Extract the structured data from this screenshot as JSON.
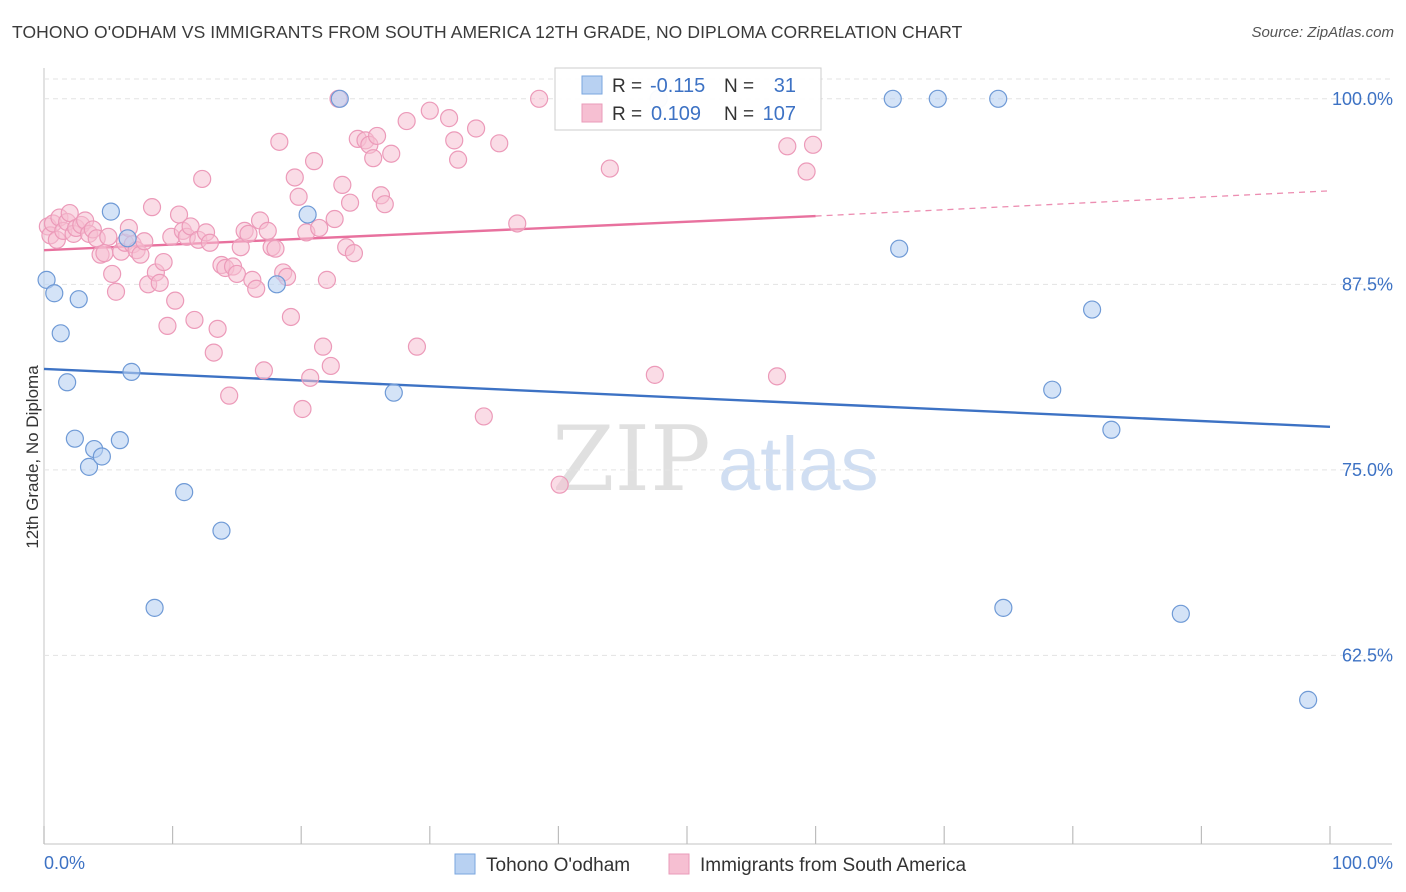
{
  "title": "TOHONO O'ODHAM VS IMMIGRANTS FROM SOUTH AMERICA 12TH GRADE, NO DIPLOMA CORRELATION CHART",
  "source": "Source: ZipAtlas.com",
  "colors": {
    "blue": "#3d72c4",
    "blue_fill": "#b8d1f2",
    "pink": "#e8719e",
    "pink_fill": "#f6bfd2"
  },
  "legend_box": {
    "row1": {
      "r_label": "R =",
      "r_value": "-0.115",
      "n_label": "N =",
      "n_value": "31"
    },
    "row2": {
      "r_label": "R =",
      "r_value": "0.109",
      "n_label": "N =",
      "n_value": "107"
    }
  },
  "bottom_legend": {
    "s1": "Tohono O'odham",
    "s2": "Immigrants from South America"
  },
  "watermark": {
    "zip": "ZIP",
    "atlas": "atlas"
  },
  "chart_data": {
    "type": "scatter",
    "title": "TOHONO O'ODHAM VS IMMIGRANTS FROM SOUTH AMERICA 12TH GRADE, NO DIPLOMA CORRELATION CHART",
    "xlabel": "",
    "ylabel": "12th Grade, No Diploma",
    "xlim": [
      0,
      100
    ],
    "ylim": [
      50.8,
      101.2
    ],
    "x_tick_labels": [
      "0.0%",
      "100.0%"
    ],
    "y_ticks": [
      100,
      87.5,
      75,
      62.5
    ],
    "y_tick_labels": [
      "100.0%",
      "87.5%",
      "75.0%",
      "62.5%"
    ],
    "grid": "horizontal dashed",
    "legend_position": "top-center",
    "series": [
      {
        "name": "Tohono O'odham",
        "color": "#3d72c4",
        "trend": {
          "x": [
            0,
            100
          ],
          "y": [
            81.8,
            77.9
          ],
          "style": "solid"
        },
        "points": [
          [
            0.2,
            87.8
          ],
          [
            0.8,
            86.9
          ],
          [
            1.3,
            84.2
          ],
          [
            1.8,
            80.9
          ],
          [
            2.4,
            77.1
          ],
          [
            2.7,
            86.5
          ],
          [
            3.5,
            75.2
          ],
          [
            3.9,
            76.4
          ],
          [
            4.5,
            75.9
          ],
          [
            5.2,
            92.4
          ],
          [
            5.9,
            77.0
          ],
          [
            6.5,
            90.6
          ],
          [
            6.8,
            81.6
          ],
          [
            8.6,
            65.7
          ],
          [
            10.9,
            73.5
          ],
          [
            13.8,
            70.9
          ],
          [
            18.1,
            87.5
          ],
          [
            20.5,
            92.2
          ],
          [
            23.0,
            100.0
          ],
          [
            27.2,
            80.2
          ],
          [
            47.8,
            100.0
          ],
          [
            66.0,
            100.0
          ],
          [
            66.5,
            89.9
          ],
          [
            69.5,
            100.0
          ],
          [
            74.2,
            100.0
          ],
          [
            74.6,
            65.7
          ],
          [
            78.4,
            80.4
          ],
          [
            81.5,
            85.8
          ],
          [
            83.0,
            77.7
          ],
          [
            88.4,
            65.3
          ],
          [
            98.3,
            59.5
          ]
        ]
      },
      {
        "name": "Immigrants from South America",
        "color": "#e8719e",
        "trend": {
          "x": [
            0,
            60
          ],
          "y": [
            89.8,
            92.1
          ],
          "style": "solid"
        },
        "trend_extension": {
          "x": [
            60,
            100
          ],
          "y": [
            92.1,
            93.8
          ],
          "style": "dashed"
        },
        "points": [
          [
            0.3,
            91.4
          ],
          [
            0.5,
            90.8
          ],
          [
            0.7,
            91.6
          ],
          [
            1.0,
            90.5
          ],
          [
            1.2,
            92.0
          ],
          [
            1.5,
            91.1
          ],
          [
            1.8,
            91.7
          ],
          [
            2.0,
            92.3
          ],
          [
            2.3,
            90.9
          ],
          [
            2.5,
            91.3
          ],
          [
            2.9,
            91.5
          ],
          [
            3.2,
            91.8
          ],
          [
            3.5,
            90.9
          ],
          [
            3.8,
            91.2
          ],
          [
            4.1,
            90.6
          ],
          [
            4.4,
            89.5
          ],
          [
            4.7,
            89.6
          ],
          [
            5.0,
            90.7
          ],
          [
            5.3,
            88.2
          ],
          [
            5.6,
            87.0
          ],
          [
            6.0,
            89.7
          ],
          [
            6.3,
            90.3
          ],
          [
            6.6,
            91.3
          ],
          [
            6.9,
            90.2
          ],
          [
            7.2,
            89.8
          ],
          [
            7.5,
            89.5
          ],
          [
            7.8,
            90.4
          ],
          [
            8.1,
            87.5
          ],
          [
            8.4,
            92.7
          ],
          [
            8.7,
            88.3
          ],
          [
            9.0,
            87.6
          ],
          [
            9.3,
            89.0
          ],
          [
            9.6,
            84.7
          ],
          [
            9.9,
            90.7
          ],
          [
            10.2,
            86.4
          ],
          [
            10.5,
            92.2
          ],
          [
            10.8,
            91.1
          ],
          [
            11.1,
            90.7
          ],
          [
            11.4,
            91.4
          ],
          [
            11.7,
            85.1
          ],
          [
            12.0,
            90.5
          ],
          [
            12.3,
            94.6
          ],
          [
            12.6,
            91.0
          ],
          [
            12.9,
            90.3
          ],
          [
            13.2,
            82.9
          ],
          [
            13.5,
            84.5
          ],
          [
            13.8,
            88.8
          ],
          [
            14.1,
            88.6
          ],
          [
            14.4,
            80.0
          ],
          [
            14.7,
            88.7
          ],
          [
            15.0,
            88.2
          ],
          [
            15.3,
            90.0
          ],
          [
            15.6,
            91.1
          ],
          [
            15.9,
            90.9
          ],
          [
            16.2,
            87.8
          ],
          [
            16.5,
            87.2
          ],
          [
            16.8,
            91.8
          ],
          [
            17.1,
            81.7
          ],
          [
            17.4,
            91.1
          ],
          [
            17.7,
            90.0
          ],
          [
            18.0,
            89.9
          ],
          [
            18.3,
            97.1
          ],
          [
            18.6,
            88.3
          ],
          [
            18.9,
            88.0
          ],
          [
            19.2,
            85.3
          ],
          [
            19.5,
            94.7
          ],
          [
            19.8,
            93.4
          ],
          [
            20.1,
            79.1
          ],
          [
            20.4,
            91.0
          ],
          [
            20.7,
            81.2
          ],
          [
            21.0,
            95.8
          ],
          [
            21.4,
            91.3
          ],
          [
            21.7,
            83.3
          ],
          [
            22.0,
            87.8
          ],
          [
            22.3,
            82.0
          ],
          [
            22.6,
            91.9
          ],
          [
            22.9,
            100.0
          ],
          [
            23.2,
            94.2
          ],
          [
            23.5,
            90.0
          ],
          [
            23.8,
            93.0
          ],
          [
            24.1,
            89.6
          ],
          [
            24.4,
            97.3
          ],
          [
            25.0,
            97.2
          ],
          [
            25.3,
            96.9
          ],
          [
            25.6,
            96.0
          ],
          [
            25.9,
            97.5
          ],
          [
            26.2,
            93.5
          ],
          [
            26.5,
            92.9
          ],
          [
            27.0,
            96.3
          ],
          [
            28.2,
            98.5
          ],
          [
            29.0,
            83.3
          ],
          [
            30.0,
            99.2
          ],
          [
            31.5,
            98.7
          ],
          [
            31.9,
            97.2
          ],
          [
            32.2,
            95.9
          ],
          [
            33.6,
            98.0
          ],
          [
            34.2,
            78.6
          ],
          [
            35.4,
            97.0
          ],
          [
            36.8,
            91.6
          ],
          [
            38.5,
            100.0
          ],
          [
            40.1,
            74.0
          ],
          [
            44.0,
            95.3
          ],
          [
            47.5,
            81.4
          ],
          [
            57.0,
            81.3
          ],
          [
            57.8,
            96.8
          ],
          [
            59.3,
            95.1
          ],
          [
            59.8,
            96.9
          ]
        ]
      }
    ]
  }
}
